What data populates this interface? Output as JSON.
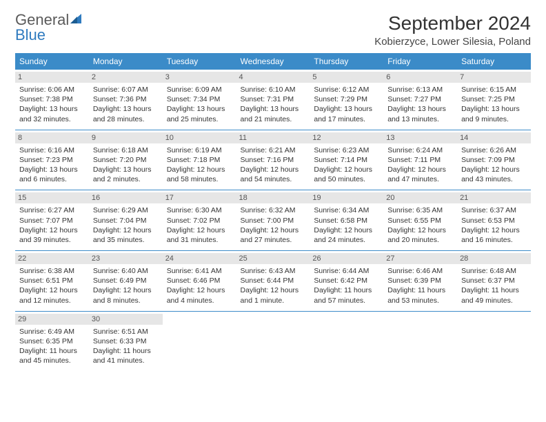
{
  "brand": {
    "name_part1": "General",
    "name_part2": "Blue"
  },
  "title": "September 2024",
  "location": "Kobierzyce, Lower Silesia, Poland",
  "colors": {
    "header_bg": "#3b8bc8",
    "header_text": "#ffffff",
    "daynum_bg": "#e6e6e6",
    "row_border": "#3b8bc8",
    "brand_gray": "#5a5a5a",
    "brand_blue": "#2f7bbf"
  },
  "weekdays": [
    "Sunday",
    "Monday",
    "Tuesday",
    "Wednesday",
    "Thursday",
    "Friday",
    "Saturday"
  ],
  "weeks": [
    [
      {
        "day": "1",
        "sunrise": "Sunrise: 6:06 AM",
        "sunset": "Sunset: 7:38 PM",
        "day1": "Daylight: 13 hours",
        "day2": "and 32 minutes."
      },
      {
        "day": "2",
        "sunrise": "Sunrise: 6:07 AM",
        "sunset": "Sunset: 7:36 PM",
        "day1": "Daylight: 13 hours",
        "day2": "and 28 minutes."
      },
      {
        "day": "3",
        "sunrise": "Sunrise: 6:09 AM",
        "sunset": "Sunset: 7:34 PM",
        "day1": "Daylight: 13 hours",
        "day2": "and 25 minutes."
      },
      {
        "day": "4",
        "sunrise": "Sunrise: 6:10 AM",
        "sunset": "Sunset: 7:31 PM",
        "day1": "Daylight: 13 hours",
        "day2": "and 21 minutes."
      },
      {
        "day": "5",
        "sunrise": "Sunrise: 6:12 AM",
        "sunset": "Sunset: 7:29 PM",
        "day1": "Daylight: 13 hours",
        "day2": "and 17 minutes."
      },
      {
        "day": "6",
        "sunrise": "Sunrise: 6:13 AM",
        "sunset": "Sunset: 7:27 PM",
        "day1": "Daylight: 13 hours",
        "day2": "and 13 minutes."
      },
      {
        "day": "7",
        "sunrise": "Sunrise: 6:15 AM",
        "sunset": "Sunset: 7:25 PM",
        "day1": "Daylight: 13 hours",
        "day2": "and 9 minutes."
      }
    ],
    [
      {
        "day": "8",
        "sunrise": "Sunrise: 6:16 AM",
        "sunset": "Sunset: 7:23 PM",
        "day1": "Daylight: 13 hours",
        "day2": "and 6 minutes."
      },
      {
        "day": "9",
        "sunrise": "Sunrise: 6:18 AM",
        "sunset": "Sunset: 7:20 PM",
        "day1": "Daylight: 13 hours",
        "day2": "and 2 minutes."
      },
      {
        "day": "10",
        "sunrise": "Sunrise: 6:19 AM",
        "sunset": "Sunset: 7:18 PM",
        "day1": "Daylight: 12 hours",
        "day2": "and 58 minutes."
      },
      {
        "day": "11",
        "sunrise": "Sunrise: 6:21 AM",
        "sunset": "Sunset: 7:16 PM",
        "day1": "Daylight: 12 hours",
        "day2": "and 54 minutes."
      },
      {
        "day": "12",
        "sunrise": "Sunrise: 6:23 AM",
        "sunset": "Sunset: 7:14 PM",
        "day1": "Daylight: 12 hours",
        "day2": "and 50 minutes."
      },
      {
        "day": "13",
        "sunrise": "Sunrise: 6:24 AM",
        "sunset": "Sunset: 7:11 PM",
        "day1": "Daylight: 12 hours",
        "day2": "and 47 minutes."
      },
      {
        "day": "14",
        "sunrise": "Sunrise: 6:26 AM",
        "sunset": "Sunset: 7:09 PM",
        "day1": "Daylight: 12 hours",
        "day2": "and 43 minutes."
      }
    ],
    [
      {
        "day": "15",
        "sunrise": "Sunrise: 6:27 AM",
        "sunset": "Sunset: 7:07 PM",
        "day1": "Daylight: 12 hours",
        "day2": "and 39 minutes."
      },
      {
        "day": "16",
        "sunrise": "Sunrise: 6:29 AM",
        "sunset": "Sunset: 7:04 PM",
        "day1": "Daylight: 12 hours",
        "day2": "and 35 minutes."
      },
      {
        "day": "17",
        "sunrise": "Sunrise: 6:30 AM",
        "sunset": "Sunset: 7:02 PM",
        "day1": "Daylight: 12 hours",
        "day2": "and 31 minutes."
      },
      {
        "day": "18",
        "sunrise": "Sunrise: 6:32 AM",
        "sunset": "Sunset: 7:00 PM",
        "day1": "Daylight: 12 hours",
        "day2": "and 27 minutes."
      },
      {
        "day": "19",
        "sunrise": "Sunrise: 6:34 AM",
        "sunset": "Sunset: 6:58 PM",
        "day1": "Daylight: 12 hours",
        "day2": "and 24 minutes."
      },
      {
        "day": "20",
        "sunrise": "Sunrise: 6:35 AM",
        "sunset": "Sunset: 6:55 PM",
        "day1": "Daylight: 12 hours",
        "day2": "and 20 minutes."
      },
      {
        "day": "21",
        "sunrise": "Sunrise: 6:37 AM",
        "sunset": "Sunset: 6:53 PM",
        "day1": "Daylight: 12 hours",
        "day2": "and 16 minutes."
      }
    ],
    [
      {
        "day": "22",
        "sunrise": "Sunrise: 6:38 AM",
        "sunset": "Sunset: 6:51 PM",
        "day1": "Daylight: 12 hours",
        "day2": "and 12 minutes."
      },
      {
        "day": "23",
        "sunrise": "Sunrise: 6:40 AM",
        "sunset": "Sunset: 6:49 PM",
        "day1": "Daylight: 12 hours",
        "day2": "and 8 minutes."
      },
      {
        "day": "24",
        "sunrise": "Sunrise: 6:41 AM",
        "sunset": "Sunset: 6:46 PM",
        "day1": "Daylight: 12 hours",
        "day2": "and 4 minutes."
      },
      {
        "day": "25",
        "sunrise": "Sunrise: 6:43 AM",
        "sunset": "Sunset: 6:44 PM",
        "day1": "Daylight: 12 hours",
        "day2": "and 1 minute."
      },
      {
        "day": "26",
        "sunrise": "Sunrise: 6:44 AM",
        "sunset": "Sunset: 6:42 PM",
        "day1": "Daylight: 11 hours",
        "day2": "and 57 minutes."
      },
      {
        "day": "27",
        "sunrise": "Sunrise: 6:46 AM",
        "sunset": "Sunset: 6:39 PM",
        "day1": "Daylight: 11 hours",
        "day2": "and 53 minutes."
      },
      {
        "day": "28",
        "sunrise": "Sunrise: 6:48 AM",
        "sunset": "Sunset: 6:37 PM",
        "day1": "Daylight: 11 hours",
        "day2": "and 49 minutes."
      }
    ],
    [
      {
        "day": "29",
        "sunrise": "Sunrise: 6:49 AM",
        "sunset": "Sunset: 6:35 PM",
        "day1": "Daylight: 11 hours",
        "day2": "and 45 minutes."
      },
      {
        "day": "30",
        "sunrise": "Sunrise: 6:51 AM",
        "sunset": "Sunset: 6:33 PM",
        "day1": "Daylight: 11 hours",
        "day2": "and 41 minutes."
      },
      null,
      null,
      null,
      null,
      null
    ]
  ]
}
